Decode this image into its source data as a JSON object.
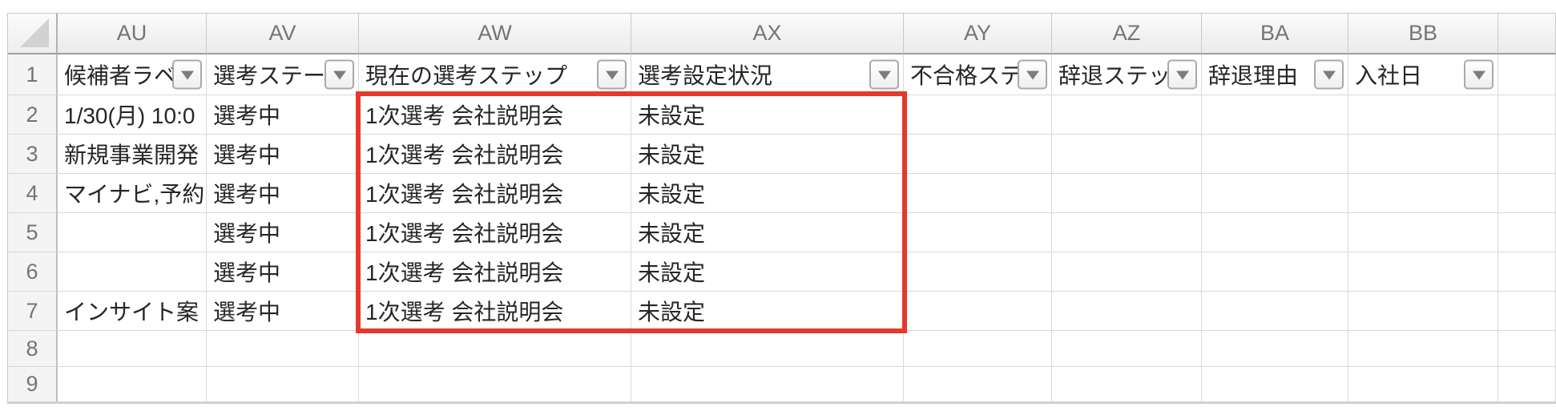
{
  "sheet": {
    "header_row_num": "1",
    "columns": [
      {
        "letter": "AU",
        "header": "候補者ラベ",
        "filter": true
      },
      {
        "letter": "AV",
        "header": "選考ステー",
        "filter": true
      },
      {
        "letter": "AW",
        "header": "現在の選考ステップ",
        "filter": true
      },
      {
        "letter": "AX",
        "header": "選考設定状況",
        "filter": true
      },
      {
        "letter": "AY",
        "header": "不合格ステ",
        "filter": true
      },
      {
        "letter": "AZ",
        "header": "辞退ステッ",
        "filter": true
      },
      {
        "letter": "BA",
        "header": "辞退理由",
        "filter": true
      },
      {
        "letter": "BB",
        "header": "入社日",
        "filter": true
      }
    ],
    "rows": [
      {
        "num": "2",
        "cells": [
          "1/30(月) 10:0",
          "選考中",
          "1次選考 会社説明会",
          "未設定",
          "",
          "",
          "",
          ""
        ]
      },
      {
        "num": "3",
        "cells": [
          "新規事業開発",
          "選考中",
          "1次選考 会社説明会",
          "未設定",
          "",
          "",
          "",
          ""
        ]
      },
      {
        "num": "4",
        "cells": [
          "マイナビ,予約",
          "選考中",
          "1次選考 会社説明会",
          "未設定",
          "",
          "",
          "",
          ""
        ]
      },
      {
        "num": "5",
        "cells": [
          "",
          "選考中",
          "1次選考 会社説明会",
          "未設定",
          "",
          "",
          "",
          ""
        ]
      },
      {
        "num": "6",
        "cells": [
          "",
          "選考中",
          "1次選考 会社説明会",
          "未設定",
          "",
          "",
          "",
          ""
        ]
      },
      {
        "num": "7",
        "cells": [
          "インサイト案",
          "選考中",
          "1次選考 会社説明会",
          "未設定",
          "",
          "",
          "",
          ""
        ]
      },
      {
        "num": "8",
        "cells": [
          "",
          "",
          "",
          "",
          "",
          "",
          "",
          ""
        ]
      },
      {
        "num": "9",
        "cells": [
          "",
          "",
          "",
          "",
          "",
          "",
          "",
          ""
        ]
      }
    ],
    "highlight": {
      "color": "#e5392b",
      "range": "AW2:AX7"
    }
  }
}
